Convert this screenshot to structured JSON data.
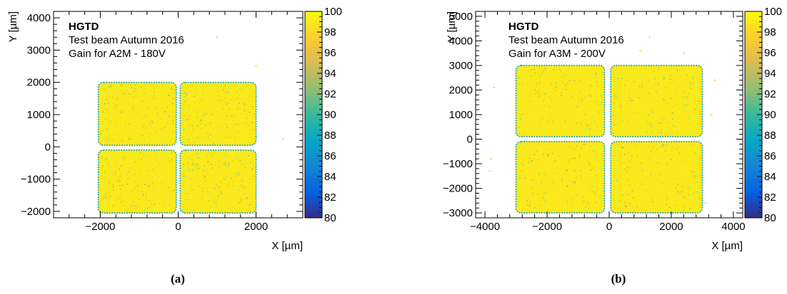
{
  "colors": {
    "palette": [
      "#352a87",
      "#0363e1",
      "#1485d4",
      "#06a7c6",
      "#38b99e",
      "#92bf73",
      "#d9ba56",
      "#fcce2e",
      "#f9fb0e"
    ],
    "outline": "#000000"
  },
  "chart_data": [
    {
      "type": "heatmap",
      "caption": "(a)",
      "experiment": "HGTD",
      "subtitle1": "Test beam Autumn 2016",
      "subtitle2": "Gain for A2M - 180V",
      "xlabel": "X [µm]",
      "ylabel": "Y [µm]",
      "xlim": [
        -3200,
        3200
      ],
      "ylim": [
        -2200,
        4200
      ],
      "xticks": [
        -2000,
        0,
        2000
      ],
      "xtick_labels": [
        "−2000",
        "0",
        "2000"
      ],
      "yticks": [
        -2000,
        -1000,
        0,
        1000,
        2000,
        3000,
        4000
      ],
      "ytick_labels": [
        "−2000",
        "−1000",
        "0",
        "1000",
        "2000",
        "3000",
        "4000"
      ],
      "zlim": [
        80,
        100
      ],
      "zticks": [
        80,
        82,
        84,
        86,
        88,
        90,
        92,
        94,
        96,
        98,
        100
      ],
      "typical_value": 99,
      "edge_value": 87,
      "pads": [
        {
          "x": [
            -2050,
            -50
          ],
          "y": [
            50,
            2000
          ]
        },
        {
          "x": [
            50,
            2000
          ],
          "y": [
            50,
            2000
          ]
        },
        {
          "x": [
            -2050,
            -50
          ],
          "y": [
            -2050,
            -100
          ]
        },
        {
          "x": [
            50,
            2000
          ],
          "y": [
            -2050,
            -100
          ]
        }
      ],
      "stray_points": [
        [
          1000,
          3400
        ],
        [
          2000,
          2500
        ],
        [
          2700,
          250
        ]
      ]
    },
    {
      "type": "heatmap",
      "caption": "(b)",
      "experiment": "HGTD",
      "subtitle1": "Test beam Autumn 2016",
      "subtitle2": "Gain for A3M - 200V",
      "xlabel": "X [µm]",
      "ylabel": "Y [µm]",
      "xlim": [
        -4300,
        4300
      ],
      "ylim": [
        -3200,
        5200
      ],
      "xticks": [
        -4000,
        -2000,
        0,
        2000,
        4000
      ],
      "xtick_labels": [
        "−4000",
        "−2000",
        "0",
        "2000",
        "4000"
      ],
      "yticks": [
        -3000,
        -2000,
        -1000,
        0,
        1000,
        2000,
        3000,
        4000,
        5000
      ],
      "ytick_labels": [
        "−3000",
        "−2000",
        "−1000",
        "0",
        "1000",
        "2000",
        "3000",
        "4000",
        "5000"
      ],
      "zlim": [
        80,
        100
      ],
      "zticks": [
        80,
        82,
        84,
        86,
        88,
        90,
        92,
        94,
        96,
        98,
        100
      ],
      "typical_value": 99,
      "edge_value": 87,
      "pads": [
        {
          "x": [
            -3000,
            -150
          ],
          "y": [
            100,
            3000
          ]
        },
        {
          "x": [
            50,
            3000
          ],
          "y": [
            100,
            3000
          ]
        },
        {
          "x": [
            -3000,
            -150
          ],
          "y": [
            -3000,
            -100
          ]
        },
        {
          "x": [
            50,
            3000
          ],
          "y": [
            -3000,
            -100
          ]
        }
      ],
      "stray_points": [
        [
          -3700,
          2100
        ],
        [
          -3800,
          -800
        ],
        [
          -3850,
          -1300
        ],
        [
          1300,
          4150
        ],
        [
          2400,
          3500
        ],
        [
          1000,
          3600
        ],
        [
          3400,
          2400
        ],
        [
          3300,
          1000
        ],
        [
          3100,
          -2600
        ]
      ]
    }
  ]
}
